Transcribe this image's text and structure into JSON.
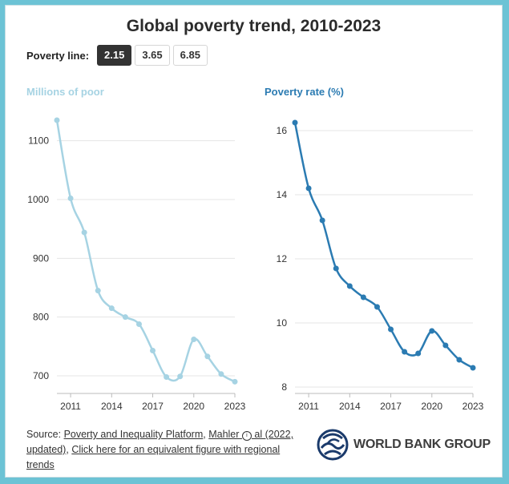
{
  "title": "Global poverty trend, 2010-2023",
  "selector": {
    "label": "Poverty line:",
    "options": [
      "2.15",
      "3.65",
      "6.85"
    ],
    "selected": "2.15"
  },
  "colors": {
    "left_series": "#a6d3e3",
    "right_series": "#2b7bb2",
    "selected_button": "#333333",
    "frame": "#6cc3d5"
  },
  "chart_data": [
    {
      "type": "line",
      "title": "Millions of poor",
      "x": [
        2010,
        2011,
        2012,
        2013,
        2014,
        2015,
        2016,
        2017,
        2018,
        2019,
        2020,
        2021,
        2022,
        2023
      ],
      "values": [
        1135,
        1002,
        944,
        845,
        815,
        800,
        788,
        743,
        698,
        699,
        762,
        733,
        703,
        690
      ],
      "xticks": [
        "2011",
        "2014",
        "2017",
        "2020",
        "2023"
      ],
      "yticks": [
        "700",
        "800",
        "900",
        "1000",
        "1100"
      ],
      "ylim": [
        670,
        1150
      ],
      "grid": "horizontal"
    },
    {
      "type": "line",
      "title": "Poverty rate (%)",
      "x": [
        2010,
        2011,
        2012,
        2013,
        2014,
        2015,
        2016,
        2017,
        2018,
        2019,
        2020,
        2021,
        2022,
        2023
      ],
      "values": [
        16.25,
        14.2,
        13.2,
        11.7,
        11.15,
        10.8,
        10.5,
        9.8,
        9.1,
        9.05,
        9.75,
        9.3,
        8.85,
        8.6
      ],
      "xticks": [
        "2011",
        "2014",
        "2017",
        "2020",
        "2023"
      ],
      "yticks": [
        "8",
        "10",
        "12",
        "14",
        "16"
      ],
      "ylim": [
        7.8,
        16.6
      ],
      "grid": "horizontal"
    }
  ],
  "source": {
    "prefix": "Source: ",
    "link1": "Poverty and Inequality Platform",
    "sep1": ", ",
    "link2": "Mahler",
    "link2_tail": " al (2022, updated)",
    "sep2": ", ",
    "link3": "Click here for an equivalent figure with regional trends"
  },
  "logo": {
    "text": "WORLD BANK GROUP"
  }
}
